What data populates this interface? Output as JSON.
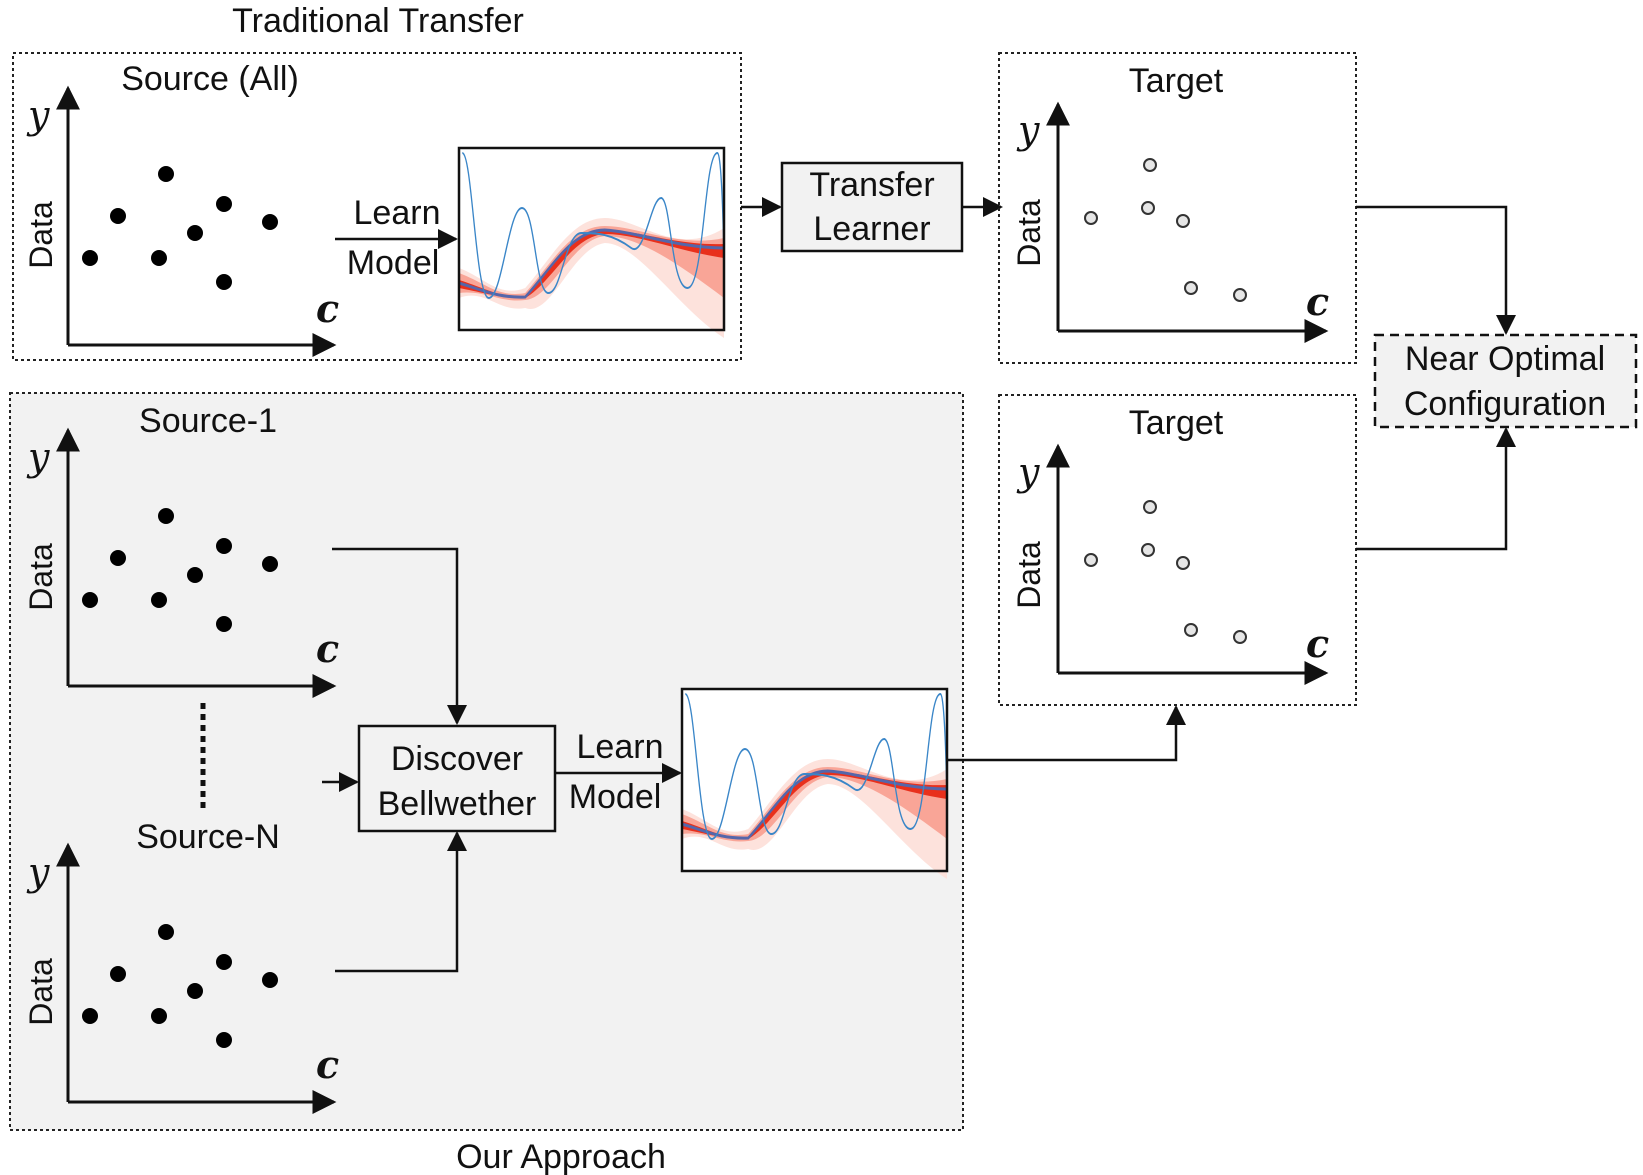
{
  "traditional": {
    "title": "Traditional Transfer",
    "source_label": "Source (All)",
    "learn_model": [
      "Learn",
      "Model"
    ],
    "transfer_learner": [
      "Transfer",
      "Learner"
    ]
  },
  "ours": {
    "title": "Our Approach",
    "source1_label": "Source-1",
    "sourceN_label": "Source-N",
    "discover": [
      "Discover",
      "Bellwether"
    ],
    "learn_model": [
      "Learn",
      "Model"
    ]
  },
  "targets": {
    "label": "Target"
  },
  "result": {
    "label": [
      "Near Optimal",
      "Configuration"
    ]
  },
  "axes": {
    "x_symbol": "c",
    "y_symbol": "y",
    "y_word": "Data"
  },
  "colors": {
    "gp_band": "#e8301c",
    "gp_sample": "#3a86c8",
    "panel_bg": "#f2f2f2"
  }
}
